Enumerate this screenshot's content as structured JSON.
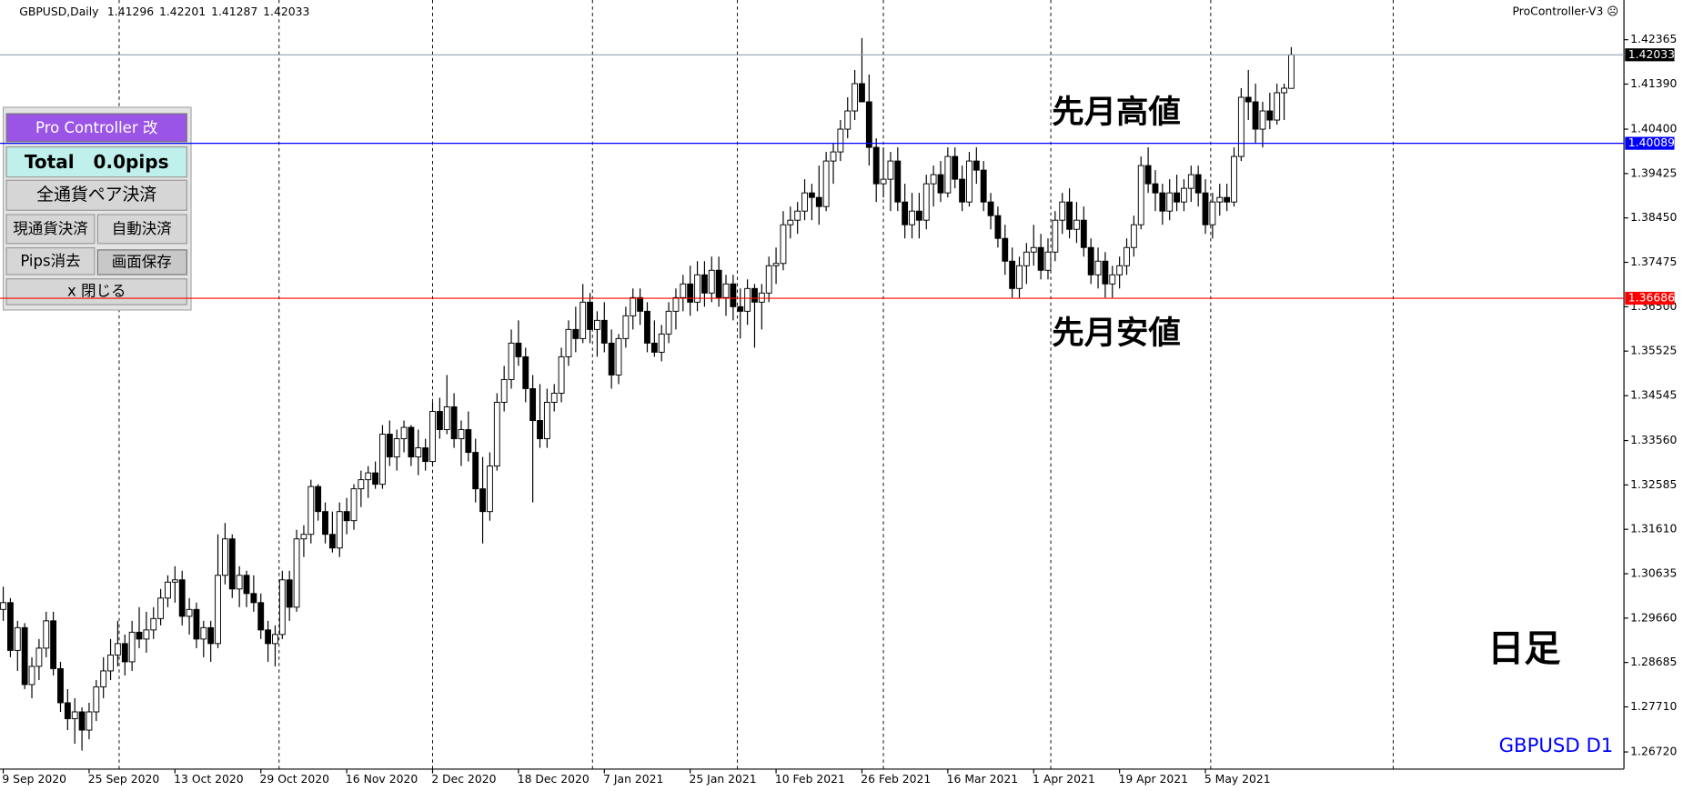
{
  "chart_data": {
    "type": "candlestick",
    "symbol": "GBPUSD,Daily",
    "source": "ProController-V3 ☹",
    "ylim": [
      1.26343,
      1.43237
    ],
    "yticks": [
      1.42365,
      {
        "value": 1.4139,
        "label": "1.41390"
      },
      {
        "value": 1.404,
        "label": "1.40400"
      },
      1.39425,
      {
        "value": 1.3845,
        "label": "1.38450"
      },
      1.37475,
      {
        "value": 1.365,
        "label": "1.36500"
      },
      1.35525,
      1.34545,
      {
        "value": 1.3356,
        "label": "1.33560"
      },
      1.32585,
      {
        "value": 1.3161,
        "label": "1.31610"
      },
      1.30635,
      {
        "value": 1.2966,
        "label": "1.29660"
      },
      1.28685,
      {
        "value": 1.2771,
        "label": "1.27710"
      },
      {
        "value": 1.2672,
        "label": "1.26720"
      }
    ],
    "price_line_color": "#8fa3b3",
    "up_color": "#ffffff",
    "down_color": "#000000",
    "levels": [
      {
        "value": 1.40089,
        "color": "#0000ff"
      },
      {
        "value": 1.36686,
        "color": "#ff0000"
      }
    ],
    "annotations": [
      "先月高値",
      "先月安値",
      "日足",
      "GBPUSD D1"
    ],
    "categories": [
      "9 Sep 2020",
      null,
      null,
      null,
      null,
      null,
      null,
      null,
      null,
      null,
      null,
      null,
      "25 Sep 2020",
      null,
      null,
      null,
      null,
      null,
      null,
      null,
      null,
      null,
      null,
      null,
      "13 Oct 2020",
      null,
      null,
      null,
      null,
      null,
      null,
      null,
      null,
      null,
      null,
      null,
      "29 Oct 2020",
      null,
      null,
      null,
      null,
      null,
      null,
      null,
      null,
      null,
      null,
      null,
      "16 Nov 2020",
      null,
      null,
      null,
      null,
      null,
      null,
      null,
      null,
      null,
      null,
      null,
      "2 Dec 2020",
      null,
      null,
      null,
      null,
      null,
      null,
      null,
      null,
      null,
      null,
      null,
      "18 Dec 2020",
      null,
      null,
      null,
      null,
      null,
      null,
      null,
      null,
      null,
      null,
      null,
      "7 Jan 2021",
      null,
      null,
      null,
      null,
      null,
      null,
      null,
      null,
      null,
      null,
      null,
      "25 Jan 2021",
      null,
      null,
      null,
      null,
      null,
      null,
      null,
      null,
      null,
      null,
      null,
      "10 Feb 2021",
      null,
      null,
      null,
      null,
      null,
      null,
      null,
      null,
      null,
      null,
      null,
      "26 Feb 2021",
      null,
      null,
      null,
      null,
      null,
      null,
      null,
      null,
      null,
      null,
      null,
      "16 Mar 2021",
      null,
      null,
      null,
      null,
      null,
      null,
      null,
      null,
      null,
      null,
      null,
      "1 Apr 2021",
      null,
      null,
      null,
      null,
      null,
      null,
      null,
      null,
      null,
      null,
      null,
      "19 Apr 2021",
      null,
      null,
      null,
      null,
      null,
      null,
      null,
      null,
      null,
      null,
      null,
      "5 May 2021",
      null,
      null,
      null,
      null,
      null,
      null,
      null,
      null,
      null,
      null,
      null,
      null
    ],
    "ohlc": [
      [
        1.2985,
        1.3035,
        1.296,
        1.3
      ],
      [
        1.3,
        1.301,
        1.288,
        1.2895
      ],
      [
        1.2895,
        1.296,
        1.285,
        1.2945
      ],
      [
        1.2945,
        1.2955,
        1.281,
        1.282
      ],
      [
        1.282,
        1.288,
        1.279,
        1.286
      ],
      [
        1.286,
        1.292,
        1.283,
        1.29
      ],
      [
        1.29,
        1.298,
        1.288,
        1.296
      ],
      [
        1.296,
        1.298,
        1.284,
        1.2855
      ],
      [
        1.2855,
        1.287,
        1.276,
        1.278
      ],
      [
        1.278,
        1.281,
        1.272,
        1.2745
      ],
      [
        1.2745,
        1.279,
        1.269,
        1.276
      ],
      [
        1.276,
        1.277,
        1.2675,
        1.272
      ],
      [
        1.272,
        1.278,
        1.27,
        1.276
      ],
      [
        1.276,
        1.283,
        1.274,
        1.2815
      ],
      [
        1.2815,
        1.288,
        1.279,
        1.285
      ],
      [
        1.285,
        1.292,
        1.283,
        1.2885
      ],
      [
        1.2885,
        1.296,
        1.286,
        1.291
      ],
      [
        1.291,
        1.293,
        1.284,
        1.287
      ],
      [
        1.287,
        1.296,
        1.285,
        1.2935
      ],
      [
        1.2935,
        1.299,
        1.29,
        1.292
      ],
      [
        1.292,
        1.298,
        1.289,
        1.294
      ],
      [
        1.294,
        1.299,
        1.292,
        1.2965
      ],
      [
        1.2965,
        1.303,
        1.295,
        1.301
      ],
      [
        1.301,
        1.306,
        1.299,
        1.3045
      ],
      [
        1.3045,
        1.308,
        1.3,
        1.305
      ],
      [
        1.305,
        1.307,
        1.295,
        1.297
      ],
      [
        1.297,
        1.301,
        1.293,
        1.2985
      ],
      [
        1.2985,
        1.3,
        1.29,
        1.292
      ],
      [
        1.292,
        1.296,
        1.288,
        1.2945
      ],
      [
        1.2945,
        1.296,
        1.287,
        1.291
      ],
      [
        1.291,
        1.315,
        1.29,
        1.306
      ],
      [
        1.306,
        1.3175,
        1.304,
        1.314
      ],
      [
        1.314,
        1.315,
        1.301,
        1.303
      ],
      [
        1.303,
        1.308,
        1.299,
        1.306
      ],
      [
        1.306,
        1.307,
        1.299,
        1.302
      ],
      [
        1.302,
        1.306,
        1.298,
        1.3
      ],
      [
        1.3,
        1.302,
        1.292,
        1.294
      ],
      [
        1.294,
        1.296,
        1.287,
        1.291
      ],
      [
        1.291,
        1.295,
        1.286,
        1.293
      ],
      [
        1.293,
        1.307,
        1.292,
        1.305
      ],
      [
        1.305,
        1.307,
        1.296,
        1.299
      ],
      [
        1.299,
        1.316,
        1.298,
        1.314
      ],
      [
        1.314,
        1.317,
        1.31,
        1.315
      ],
      [
        1.315,
        1.327,
        1.313,
        1.3255
      ],
      [
        1.3255,
        1.326,
        1.318,
        1.32
      ],
      [
        1.32,
        1.322,
        1.313,
        1.315
      ],
      [
        1.315,
        1.32,
        1.311,
        1.312
      ],
      [
        1.312,
        1.322,
        1.31,
        1.32
      ],
      [
        1.32,
        1.323,
        1.315,
        1.318
      ],
      [
        1.318,
        1.326,
        1.316,
        1.325
      ],
      [
        1.325,
        1.329,
        1.321,
        1.327
      ],
      [
        1.327,
        1.33,
        1.323,
        1.3285
      ],
      [
        1.3285,
        1.331,
        1.325,
        1.326
      ],
      [
        1.326,
        1.339,
        1.325,
        1.337
      ],
      [
        1.337,
        1.34,
        1.33,
        1.332
      ],
      [
        1.332,
        1.338,
        1.329,
        1.336
      ],
      [
        1.336,
        1.34,
        1.333,
        1.3385
      ],
      [
        1.3385,
        1.339,
        1.33,
        1.332
      ],
      [
        1.332,
        1.338,
        1.328,
        1.334
      ],
      [
        1.334,
        1.336,
        1.329,
        1.331
      ],
      [
        1.331,
        1.344,
        1.33,
        1.342
      ],
      [
        1.342,
        1.345,
        1.336,
        1.338
      ],
      [
        1.338,
        1.35,
        1.337,
        1.343
      ],
      [
        1.343,
        1.346,
        1.334,
        1.336
      ],
      [
        1.336,
        1.34,
        1.33,
        1.338
      ],
      [
        1.338,
        1.342,
        1.331,
        1.333
      ],
      [
        1.333,
        1.336,
        1.322,
        1.325
      ],
      [
        1.325,
        1.332,
        1.313,
        1.32
      ],
      [
        1.32,
        1.333,
        1.318,
        1.33
      ],
      [
        1.33,
        1.346,
        1.329,
        1.344
      ],
      [
        1.344,
        1.352,
        1.342,
        1.349
      ],
      [
        1.349,
        1.36,
        1.347,
        1.357
      ],
      [
        1.357,
        1.362,
        1.352,
        1.354
      ],
      [
        1.354,
        1.356,
        1.344,
        1.347
      ],
      [
        1.347,
        1.35,
        1.322,
        1.34
      ],
      [
        1.34,
        1.348,
        1.334,
        1.336
      ],
      [
        1.336,
        1.347,
        1.334,
        1.344
      ],
      [
        1.344,
        1.348,
        1.342,
        1.346
      ],
      [
        1.346,
        1.356,
        1.344,
        1.354
      ],
      [
        1.354,
        1.362,
        1.352,
        1.36
      ],
      [
        1.36,
        1.365,
        1.355,
        1.358
      ],
      [
        1.358,
        1.37,
        1.357,
        1.366
      ],
      [
        1.366,
        1.368,
        1.357,
        1.36
      ],
      [
        1.36,
        1.364,
        1.354,
        1.362
      ],
      [
        1.362,
        1.366,
        1.355,
        1.357
      ],
      [
        1.357,
        1.36,
        1.347,
        1.35
      ],
      [
        1.35,
        1.359,
        1.348,
        1.358
      ],
      [
        1.358,
        1.365,
        1.356,
        1.363
      ],
      [
        1.363,
        1.369,
        1.36,
        1.367
      ],
      [
        1.367,
        1.369,
        1.361,
        1.364
      ],
      [
        1.364,
        1.366,
        1.355,
        1.357
      ],
      [
        1.357,
        1.362,
        1.354,
        1.355
      ],
      [
        1.355,
        1.361,
        1.353,
        1.359
      ],
      [
        1.359,
        1.366,
        1.357,
        1.364
      ],
      [
        1.364,
        1.369,
        1.36,
        1.367
      ],
      [
        1.367,
        1.372,
        1.364,
        1.37
      ],
      [
        1.37,
        1.374,
        1.363,
        1.366
      ],
      [
        1.366,
        1.375,
        1.364,
        1.372
      ],
      [
        1.372,
        1.375,
        1.365,
        1.368
      ],
      [
        1.368,
        1.376,
        1.366,
        1.373
      ],
      [
        1.373,
        1.376,
        1.365,
        1.367
      ],
      [
        1.367,
        1.372,
        1.363,
        1.37
      ],
      [
        1.37,
        1.372,
        1.362,
        1.365
      ],
      [
        1.365,
        1.369,
        1.358,
        1.364
      ],
      [
        1.364,
        1.371,
        1.361,
        1.369
      ],
      [
        1.369,
        1.37,
        1.356,
        1.366
      ],
      [
        1.366,
        1.37,
        1.36,
        1.368
      ],
      [
        1.368,
        1.376,
        1.366,
        1.374
      ],
      [
        1.374,
        1.378,
        1.37,
        1.3745
      ],
      [
        1.3745,
        1.386,
        1.373,
        1.383
      ],
      [
        1.383,
        1.387,
        1.38,
        1.384
      ],
      [
        1.384,
        1.388,
        1.381,
        1.386
      ],
      [
        1.386,
        1.393,
        1.384,
        1.39
      ],
      [
        1.39,
        1.392,
        1.384,
        1.389
      ],
      [
        1.389,
        1.396,
        1.383,
        1.387
      ],
      [
        1.387,
        1.399,
        1.386,
        1.397
      ],
      [
        1.397,
        1.401,
        1.392,
        1.399
      ],
      [
        1.399,
        1.406,
        1.397,
        1.404
      ],
      [
        1.404,
        1.411,
        1.402,
        1.408
      ],
      [
        1.408,
        1.417,
        1.406,
        1.414
      ],
      [
        1.414,
        1.424,
        1.411,
        1.41
      ],
      [
        1.41,
        1.416,
        1.396,
        1.4
      ],
      [
        1.4,
        1.402,
        1.388,
        1.392
      ],
      [
        1.392,
        1.4,
        1.389,
        1.393
      ],
      [
        1.393,
        1.399,
        1.386,
        1.397
      ],
      [
        1.397,
        1.4,
        1.386,
        1.388
      ],
      [
        1.388,
        1.392,
        1.38,
        1.383
      ],
      [
        1.383,
        1.39,
        1.38,
        1.386
      ],
      [
        1.386,
        1.39,
        1.38,
        1.384
      ],
      [
        1.384,
        1.394,
        1.382,
        1.392
      ],
      [
        1.392,
        1.396,
        1.387,
        1.394
      ],
      [
        1.394,
        1.397,
        1.388,
        1.39
      ],
      [
        1.39,
        1.4,
        1.389,
        1.398
      ],
      [
        1.398,
        1.4,
        1.391,
        1.393
      ],
      [
        1.393,
        1.396,
        1.386,
        1.388
      ],
      [
        1.388,
        1.399,
        1.387,
        1.397
      ],
      [
        1.397,
        1.4,
        1.392,
        1.395
      ],
      [
        1.395,
        1.397,
        1.386,
        1.388
      ],
      [
        1.388,
        1.39,
        1.382,
        1.385
      ],
      [
        1.385,
        1.387,
        1.378,
        1.38
      ],
      [
        1.38,
        1.383,
        1.372,
        1.375
      ],
      [
        1.375,
        1.378,
        1.367,
        1.369
      ],
      [
        1.369,
        1.376,
        1.367,
        1.374
      ],
      [
        1.374,
        1.379,
        1.37,
        1.377
      ],
      [
        1.377,
        1.383,
        1.374,
        1.378
      ],
      [
        1.378,
        1.381,
        1.371,
        1.373
      ],
      [
        1.373,
        1.38,
        1.371,
        1.377
      ],
      [
        1.377,
        1.386,
        1.375,
        1.384
      ],
      [
        1.384,
        1.39,
        1.381,
        1.388
      ],
      [
        1.388,
        1.391,
        1.38,
        1.382
      ],
      [
        1.382,
        1.388,
        1.379,
        1.384
      ],
      [
        1.384,
        1.387,
        1.376,
        1.378
      ],
      [
        1.378,
        1.38,
        1.37,
        1.372
      ],
      [
        1.372,
        1.378,
        1.369,
        1.375
      ],
      [
        1.375,
        1.377,
        1.367,
        1.37
      ],
      [
        1.37,
        1.374,
        1.367,
        1.372
      ],
      [
        1.372,
        1.376,
        1.369,
        1.374
      ],
      [
        1.374,
        1.38,
        1.372,
        1.378
      ],
      [
        1.378,
        1.385,
        1.376,
        1.383
      ],
      [
        1.383,
        1.398,
        1.382,
        1.396
      ],
      [
        1.396,
        1.4,
        1.39,
        1.392
      ],
      [
        1.392,
        1.395,
        1.386,
        1.39
      ],
      [
        1.39,
        1.392,
        1.383,
        1.386
      ],
      [
        1.386,
        1.393,
        1.384,
        1.39
      ],
      [
        1.39,
        1.394,
        1.386,
        1.388
      ],
      [
        1.388,
        1.393,
        1.386,
        1.391
      ],
      [
        1.391,
        1.396,
        1.388,
        1.394
      ],
      [
        1.394,
        1.396,
        1.387,
        1.39
      ],
      [
        1.39,
        1.393,
        1.381,
        1.383
      ],
      [
        1.383,
        1.39,
        1.38,
        1.388
      ],
      [
        1.388,
        1.392,
        1.385,
        1.389
      ],
      [
        1.389,
        1.392,
        1.386,
        1.388
      ],
      [
        1.388,
        1.4,
        1.387,
        1.398
      ],
      [
        1.398,
        1.413,
        1.397,
        1.411
      ],
      [
        1.411,
        1.417,
        1.406,
        1.41
      ],
      [
        1.41,
        1.414,
        1.401,
        1.404
      ],
      [
        1.404,
        1.41,
        1.4,
        1.408
      ],
      [
        1.408,
        1.412,
        1.404,
        1.406
      ],
      [
        1.406,
        1.414,
        1.405,
        1.412
      ],
      [
        1.412,
        1.414,
        1.406,
        1.413
      ],
      [
        1.41296,
        1.42201,
        1.41287,
        1.42033
      ]
    ]
  },
  "panel": {
    "title": "Pro Controller 改",
    "total": "Total   0.0pips",
    "buttons": [
      "全通貨ペア決済",
      "現通貨決済",
      "自動決済",
      "Pips消去",
      "画面保存",
      "x 閉じる"
    ]
  }
}
